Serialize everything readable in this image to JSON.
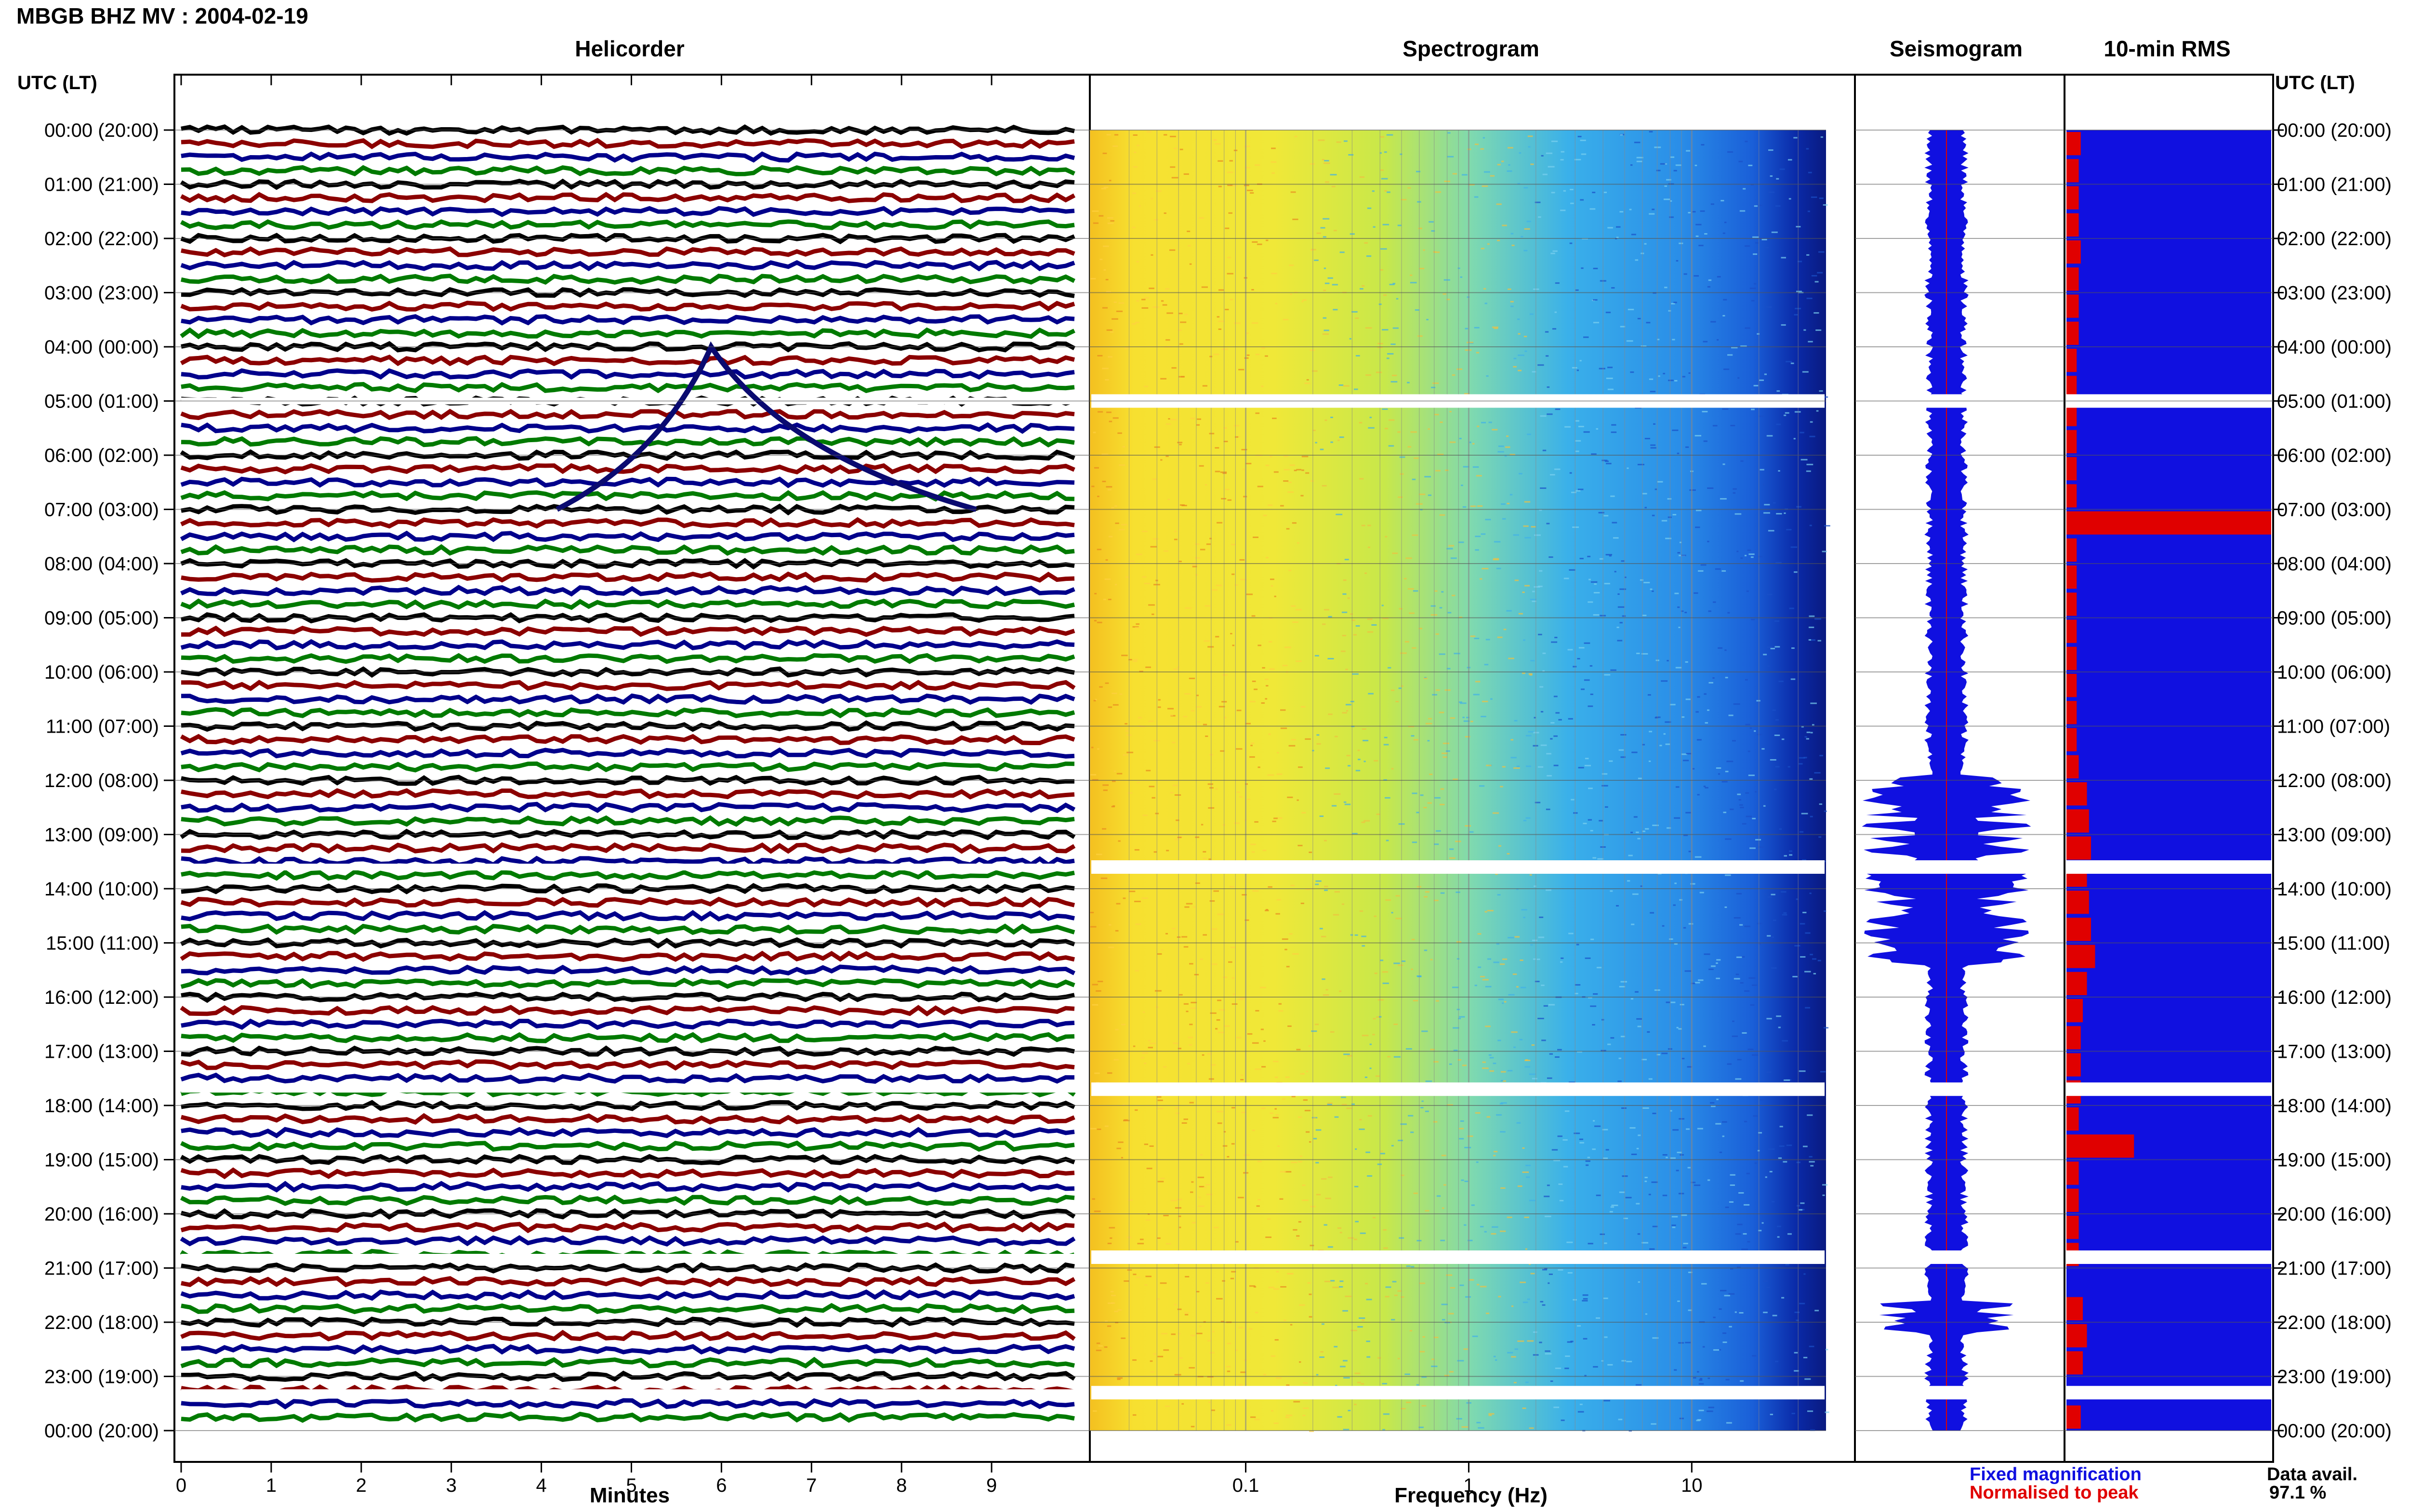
{
  "header": {
    "title": "MBGB BHZ MV : 2004-02-19"
  },
  "panels": {
    "helicorder": "Helicorder",
    "spectrogram": "Spectrogram",
    "seismogram": "Seismogram",
    "rms": "10-min RMS"
  },
  "axis": {
    "utc_label_left": "UTC (LT)",
    "utc_label_right": "UTC (LT)",
    "time_labels": [
      "00:00 (20:00)",
      "01:00 (21:00)",
      "02:00 (22:00)",
      "03:00 (23:00)",
      "04:00 (00:00)",
      "05:00 (01:00)",
      "06:00 (02:00)",
      "07:00 (03:00)",
      "08:00 (04:00)",
      "09:00 (05:00)",
      "10:00 (06:00)",
      "11:00 (07:00)",
      "12:00 (08:00)",
      "13:00 (09:00)",
      "14:00 (10:00)",
      "15:00 (11:00)",
      "16:00 (12:00)",
      "17:00 (13:00)",
      "18:00 (14:00)",
      "19:00 (15:00)",
      "20:00 (16:00)",
      "21:00 (17:00)",
      "22:00 (18:00)",
      "23:00 (19:00)",
      "00:00 (20:00)"
    ],
    "minutes_label": "Minutes",
    "minutes_ticks": [
      "0",
      "1",
      "2",
      "3",
      "4",
      "5",
      "6",
      "7",
      "8",
      "9"
    ],
    "frequency_label": "Frequency (Hz)",
    "frequency_ticks": [
      "0.1",
      "1",
      "10"
    ]
  },
  "legend": {
    "fixed": "Fixed magnification",
    "normalised": "Normalised to peak",
    "fixed_color": "#1010e0",
    "normalised_color": "#e00000"
  },
  "availability": {
    "label": "Data avail.",
    "value": "97.1 %"
  },
  "chart_data": {
    "type": "heatmap",
    "title": "MBGB BHZ MV : 2004-02-19",
    "helicorder": {
      "xlabel": "Minutes",
      "xlim": [
        0,
        10
      ],
      "trace_colors": [
        "#000000",
        "#8b0000",
        "#00008b",
        "#007a00"
      ],
      "events_utc_hour": [
        4.0,
        7.05,
        13.0,
        18.5,
        21.9
      ]
    },
    "spectrogram": {
      "xlabel": "Frequency (Hz)",
      "xscale": "log",
      "xlim": [
        0.02,
        40
      ],
      "dominant_band_hz": [
        0.2,
        1.0
      ]
    },
    "rms_10min": {
      "hours": [
        0,
        0.5,
        1,
        1.5,
        2,
        2.5,
        3,
        3.5,
        4,
        4.5,
        5,
        5.5,
        6,
        6.5,
        7,
        7.5,
        8,
        8.5,
        9,
        9.5,
        10,
        10.5,
        11,
        11.5,
        12,
        12.5,
        13,
        13.5,
        14,
        14.5,
        15,
        15.5,
        16,
        16.5,
        17,
        17.5,
        18,
        18.5,
        19,
        19.5,
        20,
        20.5,
        21,
        21.5,
        22,
        22.5,
        23,
        23.5
      ],
      "values": [
        0.07,
        0.06,
        0.06,
        0.06,
        0.07,
        0.06,
        0.06,
        0.06,
        0.05,
        0.05,
        0.05,
        0.05,
        0.05,
        0.05,
        1.0,
        0.05,
        0.05,
        0.05,
        0.05,
        0.05,
        0.05,
        0.05,
        0.05,
        0.06,
        0.1,
        0.11,
        0.12,
        0.1,
        0.11,
        0.12,
        0.14,
        0.1,
        0.08,
        0.07,
        0.07,
        0.07,
        0.06,
        0.33,
        0.06,
        0.06,
        0.06,
        0.06,
        0.0,
        0.08,
        0.1,
        0.08,
        0.0,
        0.07
      ]
    },
    "gaps_utc_hour": [
      5.0,
      13.6,
      17.7,
      20.8,
      23.3
    ]
  }
}
